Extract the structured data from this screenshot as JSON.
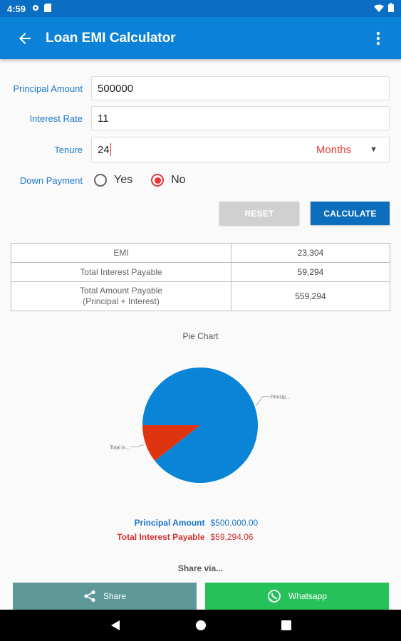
{
  "status_bar": {
    "time": "4:59",
    "icons": [
      "settings-icon",
      "sd-card-icon",
      "wifi-icon",
      "battery-icon"
    ]
  },
  "app_bar": {
    "title": "Loan EMI Calculator",
    "back_icon": "arrow-left-icon",
    "menu_icon": "more-vert-icon"
  },
  "form": {
    "principal": {
      "label": "Principal Amount",
      "value": "500000"
    },
    "interest": {
      "label": "Interest Rate",
      "value": "11"
    },
    "tenure": {
      "label": "Tenure",
      "value": "24",
      "unit": "Months"
    },
    "down_payment": {
      "label": "Down Payment",
      "options": [
        "Yes",
        "No"
      ],
      "selected": "No"
    }
  },
  "buttons": {
    "reset": "RESET",
    "calculate": "CALCULATE"
  },
  "results": [
    {
      "label": "EMI",
      "value": "23,304"
    },
    {
      "label": "Total Interest Payable",
      "value": "59,294"
    },
    {
      "label": "Total Amount Payable",
      "label2": "(Principal + Interest)",
      "value": "559,294"
    }
  ],
  "chart_data": {
    "type": "pie",
    "title": "Pie Chart",
    "slices": [
      {
        "label": "Principal Amount",
        "short_label": "Princip...",
        "value": 500000,
        "color": "#0a84d6"
      },
      {
        "label": "Total Interest Payable",
        "short_label": "Total in...",
        "value": 59294.06,
        "color": "#e03410"
      }
    ]
  },
  "legend": [
    {
      "label": "Principal Amount",
      "value": "$500,000.00",
      "color": "#1976c8"
    },
    {
      "label": "Total Interest Payable",
      "value": "$59,294.06",
      "color": "#d32f2f"
    }
  ],
  "share": {
    "title": "Share via...",
    "share_label": "Share",
    "whatsapp_label": "Whatsapp"
  },
  "colors": {
    "primary": "#0b82d8",
    "status": "#0a6fc4",
    "accent": "#e53935",
    "share": "#5e9898",
    "whatsapp": "#27c15a"
  }
}
